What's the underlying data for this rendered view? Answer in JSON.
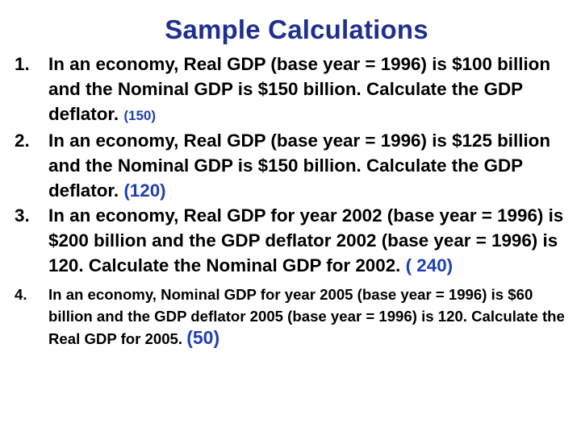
{
  "title": "Sample Calculations",
  "items": [
    {
      "number": "1.",
      "text": "In an economy, Real GDP (base year = 1996) is $100 billion and the Nominal GDP is $150 billion.  Calculate the GDP deflator.",
      "answer": "(150)"
    },
    {
      "number": "2.",
      "text": "In an economy, Real GDP (base year = 1996) is $125 billion and the Nominal GDP is $150 billion.  Calculate the GDP deflator.",
      "answer": "(120)"
    },
    {
      "number": "3.",
      "text": "In an economy, Real GDP for year 2002 (base year = 1996) is $200 billion and the GDP deflator 2002 (base year = 1996) is 120.  Calculate the Nominal GDP for 2002.",
      "answer": "( 240)"
    },
    {
      "number": "4.",
      "text": "In an economy, Nominal GDP for year 2005 (base year = 1996) is $60 billion and the GDP deflator 2005 (base year = 1996) is 120. Calculate the Real GDP for 2005.",
      "answer": "(50)"
    }
  ],
  "colors": {
    "title": "#1f2f8f",
    "answer": "#1f3fb5",
    "text": "#000000",
    "background": "#ffffff"
  }
}
